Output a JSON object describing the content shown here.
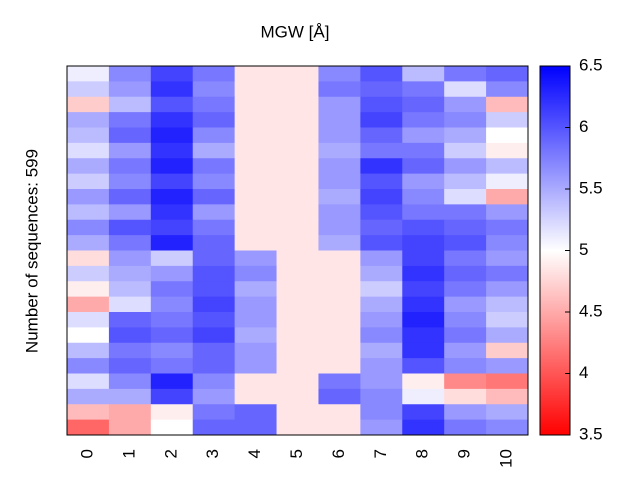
{
  "chart_data": {
    "type": "heatmap",
    "title": "MGW [Å]",
    "ylabel": "Number of sequences: 599",
    "categories": [
      "0",
      "1",
      "2",
      "3",
      "4",
      "5",
      "6",
      "7",
      "8",
      "9",
      "10"
    ],
    "values": [
      [
        5.1,
        5.7,
        6.1,
        5.8,
        4.85,
        4.85,
        5.7,
        6.0,
        5.4,
        5.8,
        5.9
      ],
      [
        5.3,
        5.6,
        6.2,
        5.7,
        4.85,
        4.85,
        5.8,
        5.9,
        5.8,
        5.2,
        5.7
      ],
      [
        4.7,
        5.4,
        6.0,
        5.8,
        4.85,
        4.85,
        5.6,
        6.0,
        5.9,
        5.6,
        4.6
      ],
      [
        5.5,
        5.8,
        6.2,
        5.9,
        4.85,
        4.85,
        5.6,
        6.1,
        5.8,
        5.7,
        5.3
      ],
      [
        5.4,
        5.9,
        6.3,
        5.7,
        4.85,
        4.85,
        5.6,
        5.9,
        5.6,
        5.5,
        5.0
      ],
      [
        5.2,
        5.6,
        6.2,
        5.5,
        4.85,
        4.85,
        5.5,
        5.8,
        5.8,
        5.3,
        4.9
      ],
      [
        5.5,
        5.8,
        6.3,
        5.8,
        4.85,
        4.85,
        5.6,
        6.2,
        5.9,
        5.6,
        5.4
      ],
      [
        5.3,
        5.7,
        6.1,
        5.7,
        4.85,
        4.85,
        5.6,
        6.0,
        5.6,
        5.4,
        5.1
      ],
      [
        5.6,
        5.9,
        6.3,
        5.9,
        4.85,
        4.85,
        5.5,
        6.1,
        5.7,
        5.2,
        4.5
      ],
      [
        5.4,
        5.6,
        6.2,
        5.6,
        4.85,
        4.85,
        5.6,
        6.0,
        5.8,
        5.8,
        5.6
      ],
      [
        5.7,
        6.0,
        6.1,
        5.8,
        4.85,
        4.85,
        5.6,
        5.9,
        6.0,
        5.9,
        5.8
      ],
      [
        5.5,
        5.8,
        6.3,
        5.9,
        4.85,
        4.85,
        5.5,
        6.0,
        6.1,
        6.0,
        5.7
      ],
      [
        4.8,
        5.6,
        5.3,
        5.9,
        5.6,
        4.85,
        4.85,
        5.6,
        6.1,
        5.8,
        5.6
      ],
      [
        5.3,
        5.5,
        5.6,
        6.0,
        5.7,
        4.85,
        4.85,
        5.5,
        6.2,
        5.9,
        5.8
      ],
      [
        4.9,
        5.4,
        5.8,
        6.0,
        5.5,
        4.85,
        4.85,
        5.3,
        6.1,
        5.8,
        5.6
      ],
      [
        4.5,
        5.2,
        5.7,
        6.1,
        5.6,
        4.85,
        4.85,
        5.5,
        6.2,
        5.6,
        5.4
      ],
      [
        5.2,
        5.9,
        5.8,
        6.0,
        5.6,
        4.85,
        4.85,
        5.6,
        6.3,
        5.7,
        5.3
      ],
      [
        5.0,
        6.0,
        5.9,
        6.1,
        5.5,
        4.85,
        4.85,
        5.7,
        6.2,
        5.8,
        5.5
      ],
      [
        5.4,
        5.8,
        5.7,
        5.9,
        5.6,
        4.85,
        4.85,
        5.5,
        6.2,
        5.6,
        4.7
      ],
      [
        5.7,
        5.9,
        5.8,
        5.9,
        5.6,
        4.85,
        4.85,
        5.6,
        6.0,
        5.7,
        5.6
      ],
      [
        5.2,
        5.7,
        6.3,
        5.7,
        4.85,
        4.85,
        5.8,
        5.6,
        4.9,
        4.3,
        4.2
      ],
      [
        5.5,
        5.5,
        6.1,
        5.6,
        4.85,
        4.85,
        5.9,
        5.7,
        5.1,
        4.8,
        4.6
      ],
      [
        4.6,
        4.5,
        4.9,
        5.8,
        5.9,
        4.85,
        4.85,
        5.7,
        6.1,
        5.6,
        5.5
      ],
      [
        4.1,
        4.5,
        5.0,
        5.9,
        5.9,
        4.85,
        4.85,
        5.6,
        6.2,
        5.8,
        5.7
      ]
    ],
    "colormap": [
      "#ff0000",
      "#ffffff",
      "#0000ff"
    ],
    "clim": [
      3.5,
      6.5
    ],
    "cticks": [
      3.5,
      4,
      4.5,
      5,
      5.5,
      6,
      6.5
    ]
  }
}
